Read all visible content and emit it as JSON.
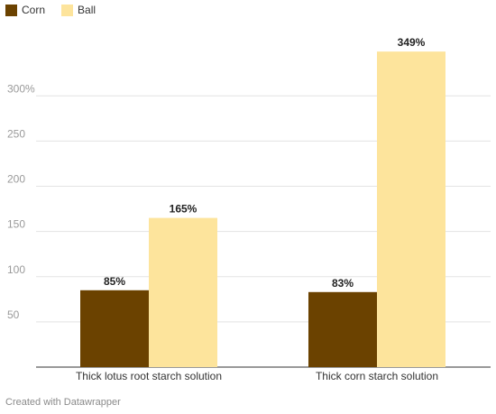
{
  "chart_data": {
    "type": "bar",
    "categories": [
      "Thick lotus root starch solution",
      "Thick corn starch solution"
    ],
    "series": [
      {
        "name": "Corn",
        "color": "#6b4200",
        "values": [
          85,
          83
        ],
        "labels": [
          "85%",
          "83%"
        ]
      },
      {
        "name": "Ball",
        "color": "#fde49c",
        "values": [
          165,
          349
        ],
        "labels": [
          "165%",
          "349%"
        ]
      }
    ],
    "yticks": [
      {
        "value": 50,
        "label": "50"
      },
      {
        "value": 100,
        "label": "100"
      },
      {
        "value": 150,
        "label": "150"
      },
      {
        "value": 200,
        "label": "200"
      },
      {
        "value": 250,
        "label": "250"
      },
      {
        "value": 300,
        "label": "300%"
      }
    ],
    "ylim": [
      0,
      350
    ],
    "grid": true,
    "legend_position": "top-left"
  },
  "footer": {
    "credit": "Created with Datawrapper"
  }
}
